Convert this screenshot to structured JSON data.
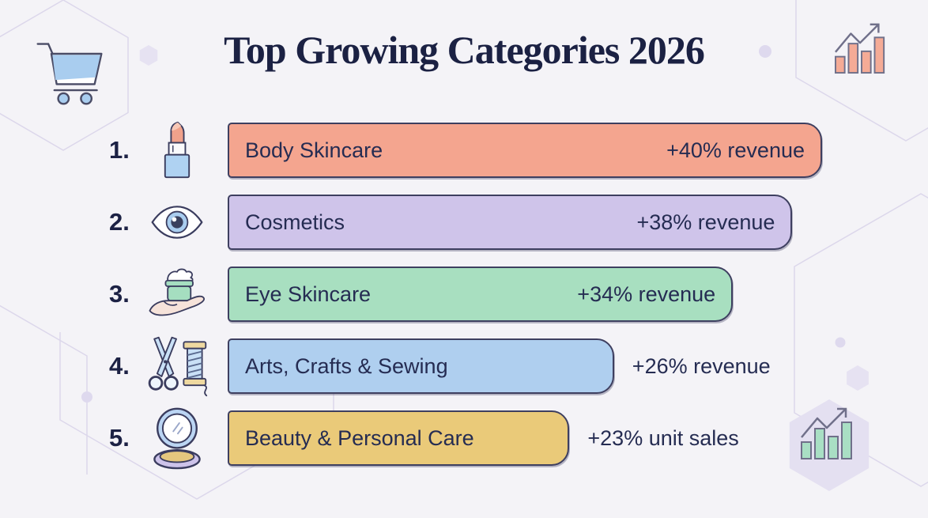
{
  "page": {
    "title": "Top Growing Categories 2026"
  },
  "decor": {
    "top_left_icon": "shopping-cart-icon",
    "top_right_icon": "bar-chart-up-icon",
    "bottom_right_icon": "bar-chart-up-hexagon-icon",
    "background_pattern": "faint-hexagon-outlines"
  },
  "colors": {
    "background": "#f4f3f7",
    "title_text": "#1b2143",
    "bar_border": "#3e3f60",
    "bar_text": "#252c52",
    "salmon": "#f4a58f",
    "lavender": "#cfc4ea",
    "green": "#a8dfc0",
    "blue": "#afcfef",
    "gold": "#eaca79",
    "hex_outline": "#dcd7eb",
    "hex_fill": "#e6e2f2"
  },
  "chart_data": {
    "type": "bar",
    "orientation": "horizontal",
    "title": "Top Growing Categories 2026",
    "categories": [
      "Body Skincare",
      "Cosmetics",
      "Eye Skincare",
      "Arts, Crafts & Sewing",
      "Beauty & Personal Care"
    ],
    "values": [
      40,
      38,
      34,
      26,
      23
    ],
    "value_labels": [
      "+40% revenue",
      "+38% revenue",
      "+34% revenue",
      "+26% revenue",
      "+23% unit sales"
    ],
    "units": [
      "percent revenue growth",
      "percent revenue growth",
      "percent revenue growth",
      "percent revenue growth",
      "percent unit sales growth"
    ],
    "xlabel": "",
    "ylabel": "",
    "xlim": [
      0,
      44
    ],
    "grid": false,
    "legend": false,
    "bar_colors": [
      "#f4a58f",
      "#cfc4ea",
      "#a8dfc0",
      "#afcfef",
      "#eaca79"
    ]
  },
  "rows": [
    {
      "rank": "1.",
      "icon": "lipstick-icon",
      "label": "Body Skincare",
      "value": 40,
      "value_label": "+40% revenue",
      "bar_color": "#f4a58f",
      "value_inside": true
    },
    {
      "rank": "2.",
      "icon": "eye-icon",
      "label": "Cosmetics",
      "value": 38,
      "value_label": "+38% revenue",
      "bar_color": "#cfc4ea",
      "value_inside": true
    },
    {
      "rank": "3.",
      "icon": "cream-jar-hand-icon",
      "label": "Eye Skincare",
      "value": 34,
      "value_label": "+34% revenue",
      "bar_color": "#a8dfc0",
      "value_inside": true
    },
    {
      "rank": "4.",
      "icon": "scissors-thread-icon",
      "label": "Arts, Crafts & Sewing",
      "value": 26,
      "value_label": "+26% revenue",
      "bar_color": "#afcfef",
      "value_inside": false
    },
    {
      "rank": "5.",
      "icon": "compact-mirror-icon",
      "label": "Beauty & Personal Care",
      "value": 23,
      "value_label": "+23% unit sales",
      "bar_color": "#eaca79",
      "value_inside": false
    }
  ]
}
